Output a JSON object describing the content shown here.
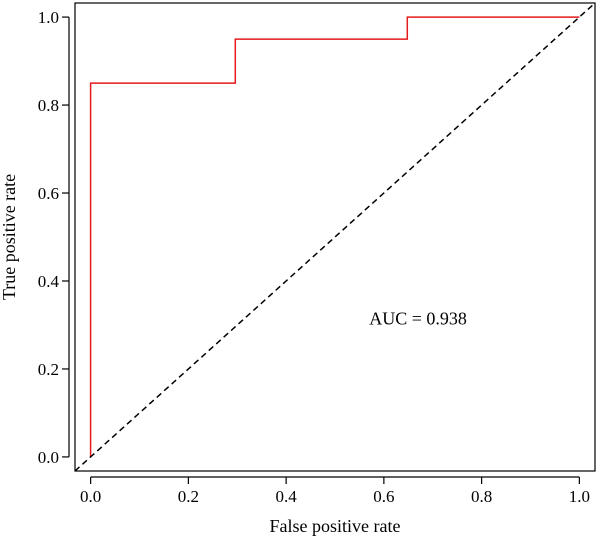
{
  "chart_data": {
    "type": "line",
    "title": "",
    "xlabel": "False positive rate",
    "ylabel": "True positive rate",
    "xlim": [
      -0.032,
      1.032
    ],
    "ylim": [
      -0.032,
      1.032
    ],
    "xticks": [
      0.0,
      0.2,
      0.4,
      0.6,
      0.8,
      1.0
    ],
    "xtick_labels": [
      "0.0",
      "0.2",
      "0.4",
      "0.6",
      "0.8",
      "1.0"
    ],
    "yticks": [
      0.0,
      0.2,
      0.4,
      0.6,
      0.8,
      1.0
    ],
    "ytick_labels": [
      "0.0",
      "0.2",
      "0.4",
      "0.6",
      "0.8",
      "1.0"
    ],
    "grid": false,
    "series": [
      {
        "style": "solid",
        "color": "#e41a1c",
        "x": [
          0.0,
          0.0,
          0.296,
          0.296,
          0.648,
          0.648,
          1.0
        ],
        "y": [
          0.0,
          0.85,
          0.85,
          0.95,
          0.95,
          1.0,
          1.0
        ]
      },
      {
        "style": "dashed",
        "color": "#000000",
        "x": [
          -0.032,
          1.032
        ],
        "y": [
          -0.032,
          1.032
        ]
      }
    ],
    "annotations": [
      {
        "text": "AUC = 0.938",
        "x": 0.57,
        "y": 0.315
      }
    ]
  }
}
